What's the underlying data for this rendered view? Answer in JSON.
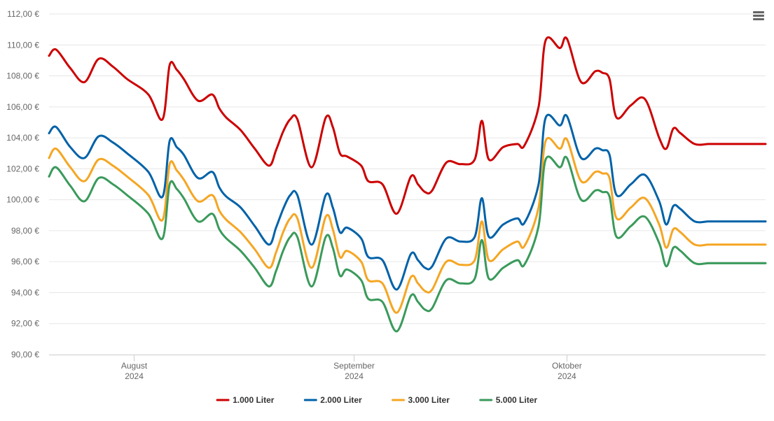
{
  "chart_data": {
    "type": "line",
    "title": "",
    "xlabel": "",
    "ylabel": "",
    "ylim": [
      90,
      112
    ],
    "y_ticks": [
      90,
      92,
      94,
      96,
      98,
      100,
      102,
      104,
      106,
      108,
      110,
      112
    ],
    "y_tick_labels": [
      "90,00 €",
      "92,00 €",
      "94,00 €",
      "96,00 €",
      "98,00 €",
      "100,00 €",
      "102,00 €",
      "104,00 €",
      "106,00 €",
      "108,00 €",
      "110,00 €",
      "112,00 €"
    ],
    "x_range": [
      "2024-07-20",
      "2024-10-29"
    ],
    "x_ticks": [
      {
        "date": "2024-08-01",
        "month": "August",
        "year": "2024"
      },
      {
        "date": "2024-09-01",
        "month": "September",
        "year": "2024"
      },
      {
        "date": "2024-10-01",
        "month": "Oktober",
        "year": "2024"
      }
    ],
    "grid": "horizontal",
    "legend_position": "bottom-center",
    "x": [
      "2024-07-20",
      "2024-07-21",
      "2024-07-23",
      "2024-07-25",
      "2024-07-27",
      "2024-07-29",
      "2024-07-31",
      "2024-08-03",
      "2024-08-05",
      "2024-08-06",
      "2024-08-07",
      "2024-08-08",
      "2024-08-10",
      "2024-08-12",
      "2024-08-13",
      "2024-08-14",
      "2024-08-16",
      "2024-08-18",
      "2024-08-20",
      "2024-08-21",
      "2024-08-22",
      "2024-08-23",
      "2024-08-24",
      "2024-08-26",
      "2024-08-28",
      "2024-08-29",
      "2024-08-30",
      "2024-08-31",
      "2024-09-02",
      "2024-09-03",
      "2024-09-05",
      "2024-09-07",
      "2024-09-09",
      "2024-09-10",
      "2024-09-11",
      "2024-09-12",
      "2024-09-14",
      "2024-09-16",
      "2024-09-18",
      "2024-09-19",
      "2024-09-20",
      "2024-09-22",
      "2024-09-24",
      "2024-09-25",
      "2024-09-27",
      "2024-09-28",
      "2024-09-30",
      "2024-10-01",
      "2024-10-03",
      "2024-10-05",
      "2024-10-06",
      "2024-10-07",
      "2024-10-08",
      "2024-10-10",
      "2024-10-12",
      "2024-10-14",
      "2024-10-15",
      "2024-10-16",
      "2024-10-17",
      "2024-10-19",
      "2024-10-21",
      "2024-10-23",
      "2024-10-24",
      "2024-10-25",
      "2024-10-27",
      "2024-10-29"
    ],
    "series": [
      {
        "name": "1.000 Liter",
        "color": "#cc0000",
        "values": [
          109.3,
          109.7,
          108.5,
          107.6,
          109.1,
          108.6,
          107.8,
          106.8,
          105.2,
          108.7,
          108.4,
          107.8,
          106.4,
          106.8,
          105.9,
          105.3,
          104.5,
          103.3,
          102.2,
          103.2,
          104.4,
          105.2,
          105.2,
          102.1,
          105.3,
          104.7,
          103.0,
          102.8,
          102.2,
          101.2,
          101.0,
          99.1,
          101.5,
          101.0,
          100.5,
          100.6,
          102.4,
          102.3,
          102.6,
          105.1,
          102.6,
          103.4,
          103.6,
          103.5,
          106.0,
          110.3,
          109.8,
          110.4,
          107.6,
          108.3,
          108.2,
          107.8,
          105.3,
          106.1,
          106.5,
          104.0,
          103.3,
          104.6,
          104.3,
          103.6,
          103.6,
          103.6,
          103.6,
          103.6,
          103.6,
          103.6
        ]
      },
      {
        "name": "2.000 Liter",
        "color": "#0062a8",
        "values": [
          104.3,
          104.7,
          103.4,
          102.7,
          104.1,
          103.7,
          103.0,
          101.8,
          100.2,
          103.8,
          103.4,
          102.9,
          101.4,
          101.8,
          100.8,
          100.2,
          99.5,
          98.3,
          97.1,
          98.2,
          99.4,
          100.3,
          100.3,
          97.1,
          100.3,
          99.5,
          97.9,
          98.2,
          97.5,
          96.3,
          96.1,
          94.2,
          96.5,
          96.1,
          95.6,
          95.7,
          97.5,
          97.3,
          97.6,
          100.1,
          97.6,
          98.4,
          98.8,
          98.5,
          101.0,
          105.3,
          104.8,
          105.4,
          102.7,
          103.3,
          103.2,
          102.9,
          100.3,
          101.0,
          101.6,
          99.9,
          98.4,
          99.6,
          99.4,
          98.6,
          98.6,
          98.6,
          98.6,
          98.6,
          98.6,
          98.6
        ]
      },
      {
        "name": "3.000 Liter",
        "color": "#f5a623",
        "values": [
          102.7,
          103.3,
          102.1,
          101.2,
          102.6,
          102.2,
          101.5,
          100.3,
          98.7,
          102.3,
          101.9,
          101.3,
          99.9,
          100.3,
          99.3,
          98.7,
          97.9,
          96.8,
          95.6,
          96.6,
          97.9,
          98.8,
          98.8,
          95.6,
          98.9,
          98.1,
          96.3,
          96.7,
          96.0,
          94.8,
          94.6,
          92.7,
          95.0,
          94.6,
          94.1,
          94.2,
          96.0,
          95.8,
          96.1,
          98.6,
          96.1,
          96.8,
          97.3,
          97.0,
          99.5,
          103.8,
          103.3,
          103.9,
          101.2,
          101.8,
          101.7,
          101.4,
          98.8,
          99.5,
          100.1,
          98.4,
          96.9,
          98.1,
          97.9,
          97.1,
          97.1,
          97.1,
          97.1,
          97.1,
          97.1,
          97.1
        ]
      },
      {
        "name": "5.000 Liter",
        "color": "#3a9a5b",
        "values": [
          101.5,
          102.1,
          100.9,
          99.9,
          101.4,
          101.0,
          100.3,
          99.1,
          97.5,
          101.0,
          100.7,
          100.1,
          98.6,
          99.1,
          98.1,
          97.5,
          96.7,
          95.6,
          94.4,
          95.4,
          96.7,
          97.6,
          97.6,
          94.4,
          97.6,
          96.9,
          95.1,
          95.5,
          94.8,
          93.6,
          93.4,
          91.5,
          93.8,
          93.4,
          92.9,
          93.0,
          94.8,
          94.6,
          94.9,
          97.4,
          94.9,
          95.6,
          96.1,
          95.8,
          98.3,
          102.6,
          102.1,
          102.7,
          100.0,
          100.6,
          100.5,
          100.2,
          97.6,
          98.3,
          98.9,
          97.2,
          95.7,
          96.9,
          96.7,
          95.9,
          95.9,
          95.9,
          95.9,
          95.9,
          95.9,
          95.9
        ]
      }
    ]
  },
  "icons": {
    "menu": "hamburger-menu-icon"
  }
}
